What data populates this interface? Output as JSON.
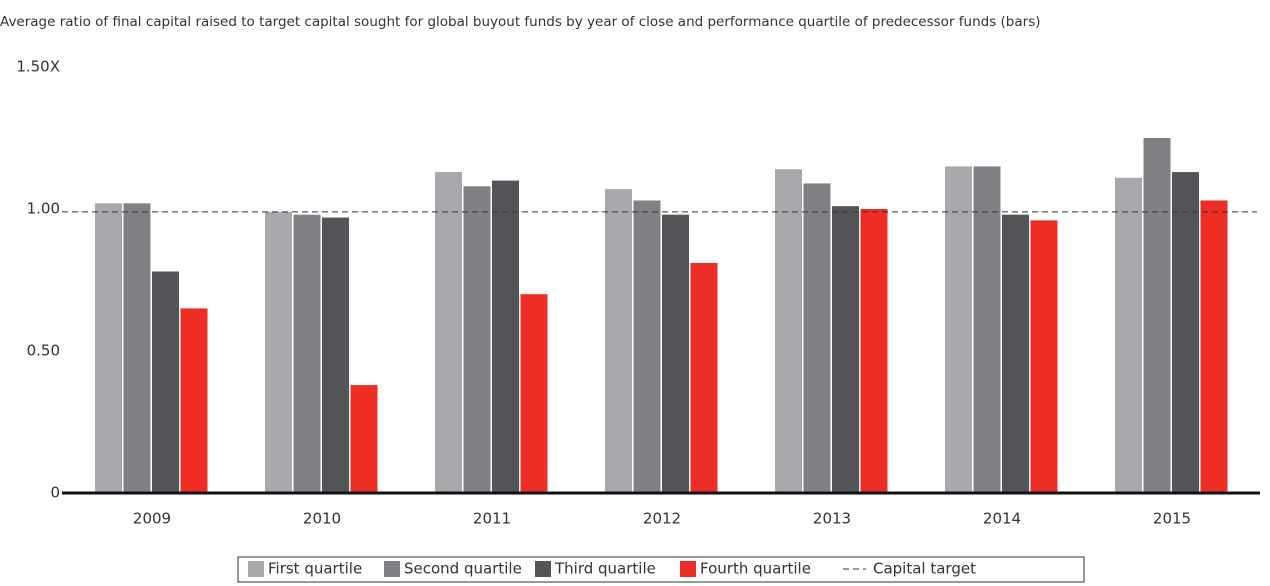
{
  "chart_data": {
    "type": "bar",
    "title": "Average ratio of final capital raised to target capital sought for global buyout funds by year of close and performance quartile of predecessor funds (bars)",
    "categories": [
      "2009",
      "2010",
      "2011",
      "2012",
      "2013",
      "2014",
      "2015"
    ],
    "series": [
      {
        "name": "First quartile",
        "color": "#a7a8ab",
        "values": [
          1.02,
          0.99,
          1.13,
          1.07,
          1.14,
          1.15,
          1.11
        ]
      },
      {
        "name": "Second quartile",
        "color": "#808185",
        "values": [
          1.02,
          0.98,
          1.08,
          1.03,
          1.09,
          1.15,
          1.25
        ]
      },
      {
        "name": "Third quartile",
        "color": "#545558",
        "values": [
          0.78,
          0.97,
          1.1,
          0.98,
          1.01,
          0.98,
          1.13
        ]
      },
      {
        "name": "Fourth quartile",
        "color": "#ee2d24",
        "values": [
          0.65,
          0.38,
          0.7,
          0.81,
          1.0,
          0.96,
          1.03
        ]
      }
    ],
    "capital_target": {
      "name": "Capital target",
      "value": 0.99,
      "color": "#333333"
    },
    "ylim": [
      0,
      1.5
    ],
    "yticks": [
      0,
      {
        "value": 0.5,
        "label": "0.50"
      },
      {
        "value": 1,
        "label": "1.00"
      },
      {
        "value": 1.5,
        "label": "1.50X"
      }
    ],
    "grid": false,
    "legend": "bottom"
  }
}
